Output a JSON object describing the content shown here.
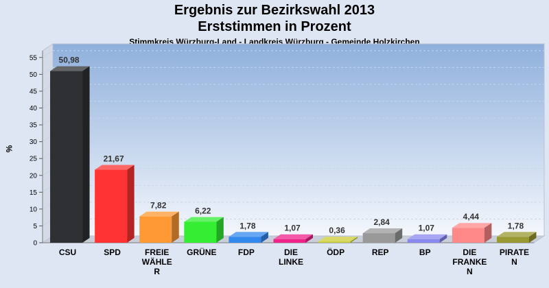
{
  "header": {
    "title_line1": "Ergebnis zur Bezirkswahl 2013",
    "title_line2": "Erststimmen in Prozent",
    "subtitle": "Stimmkreis Würzburg-Land - Landkreis Würzburg - Gemeinde Holzkirchen"
  },
  "chart_data": {
    "type": "bar",
    "title": "Ergebnis zur Bezirkswahl 2013 / Erststimmen in Prozent",
    "subtitle": "Stimmkreis Würzburg-Land - Landkreis Würzburg - Gemeinde Holzkirchen",
    "ylabel": "%",
    "ylim": [
      0,
      57
    ],
    "yticks": [
      0,
      5,
      10,
      15,
      20,
      25,
      30,
      35,
      40,
      45,
      50,
      55
    ],
    "grid": true,
    "legend": "none",
    "categories": [
      [
        "CSU"
      ],
      [
        "SPD"
      ],
      [
        "FREIE",
        "WÄHLE",
        "R"
      ],
      [
        "GRÜNE"
      ],
      [
        "FDP"
      ],
      [
        "DIE",
        "LINKE"
      ],
      [
        "ÖDP"
      ],
      [
        "REP"
      ],
      [
        "BP"
      ],
      [
        "DIE",
        "FRANKE",
        "N"
      ],
      [
        "PIRATE",
        "N"
      ]
    ],
    "values": [
      50.98,
      21.67,
      7.82,
      6.22,
      1.78,
      1.07,
      0.36,
      2.84,
      1.07,
      4.44,
      1.78
    ],
    "value_labels": [
      "50,98",
      "21,67",
      "7,82",
      "6,22",
      "1,78",
      "1,07",
      "0,36",
      "2,84",
      "1,07",
      "4,44",
      "1,78"
    ],
    "colors": [
      "#2f3033",
      "#ff3333",
      "#ff9933",
      "#33ee33",
      "#3388ee",
      "#ee2288",
      "#cccc33",
      "#999999",
      "#8888ee",
      "#ff8888",
      "#999933"
    ]
  }
}
